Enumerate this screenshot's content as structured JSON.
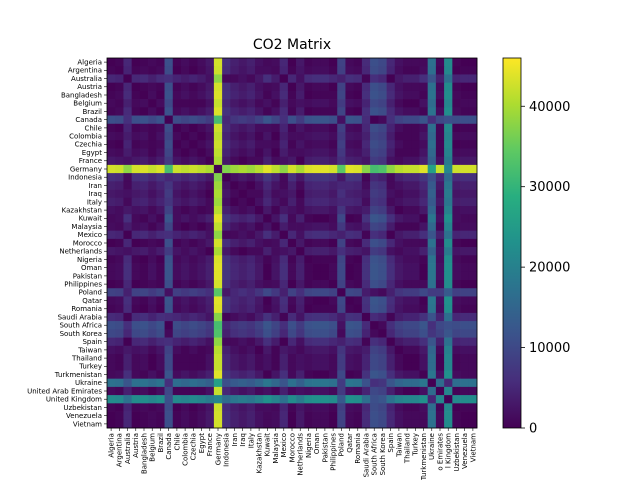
{
  "chart_data": {
    "type": "heatmap",
    "title": "CO2 Matrix",
    "xlabel": "",
    "ylabel": "",
    "colormap": "viridis",
    "value_range": [
      0,
      46000
    ],
    "colorbar_ticks": [
      "0",
      "10000",
      "20000",
      "30000",
      "40000"
    ],
    "categories": [
      "Algeria",
      "Argentina",
      "Australia",
      "Austria",
      "Bangladesh",
      "Belgium",
      "Brazil",
      "Canada",
      "Chile",
      "Colombia",
      "Czechia",
      "Egypt",
      "France",
      "Germany",
      "Indonesia",
      "Iran",
      "Iraq",
      "Italy",
      "Kazakhstan",
      "Kuwait",
      "Malaysia",
      "Mexico",
      "Morocco",
      "Netherlands",
      "Nigeria",
      "Oman",
      "Pakistan",
      "Philippines",
      "Poland",
      "Qatar",
      "Romania",
      "Saudi Arabia",
      "South Africa",
      "South Korea",
      "Spain",
      "Taiwan",
      "Thailand",
      "Turkey",
      "Turkmenistan",
      "Ukraine",
      "United Arab Emirates",
      "United Kingdom",
      "Uzbekistan",
      "Venezuela",
      "Vietnam"
    ],
    "x_tick_labels": [
      "Algeria",
      "Argentina",
      "Australia",
      "Austria",
      "Bangladesh",
      "Belgium",
      "Brazil",
      "Canada",
      "Chile",
      "Colombia",
      "Czechia",
      "Egypt",
      "France",
      "Germany",
      "Indonesia",
      "Iran",
      "Iraq",
      "Italy",
      "Kazakhstan",
      "Kuwait",
      "Malaysia",
      "Mexico",
      "Morocco",
      "Netherlands",
      "Nigeria",
      "Oman",
      "Pakistan",
      "Philippines",
      "Poland",
      "Qatar",
      "Romania",
      "Saudi Arabia",
      "South Africa",
      "South Korea",
      "Spain",
      "Taiwan",
      "Thailand",
      "Turkey",
      "Turkmenistan",
      "Ukraine",
      "o Emirates",
      "l Kingdom",
      "Uzbekistan",
      "Venezuela",
      "Vietnam"
    ],
    "approx_country_values": [
      3000,
      3500,
      8000,
      3000,
      2500,
      4000,
      2500,
      14000,
      3500,
      4500,
      3500,
      4500,
      6000,
      46000,
      9000,
      7000,
      6000,
      7000,
      5000,
      2000,
      4500,
      8000,
      3000,
      6000,
      2500,
      2000,
      2000,
      3000,
      12000,
      2000,
      2500,
      8500,
      14000,
      13000,
      8000,
      5000,
      4000,
      4000,
      2000,
      20000,
      4000,
      25000,
      3500,
      3000,
      3000
    ]
  }
}
